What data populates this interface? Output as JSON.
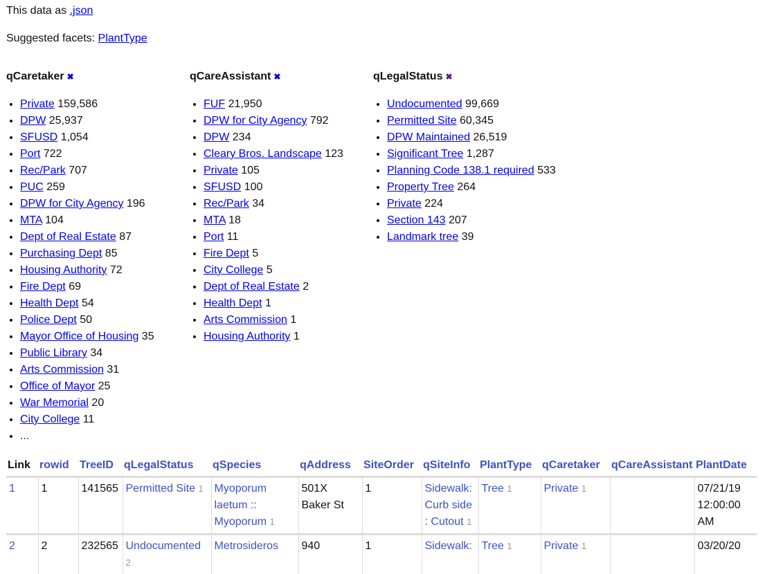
{
  "header": {
    "json_prefix": "This data as",
    "json_link": ".json",
    "suggested_label": "Suggested facets:",
    "suggested": [
      "PlantType"
    ]
  },
  "facets": [
    {
      "name": "qCaretaker",
      "remove_icon": "✖",
      "icon_color": "#0000ee",
      "items": [
        {
          "label": "Private",
          "count": "159,586"
        },
        {
          "label": "DPW",
          "count": "25,937"
        },
        {
          "label": "SFUSD",
          "count": "1,054"
        },
        {
          "label": "Port",
          "count": "722"
        },
        {
          "label": "Rec/Park",
          "count": "707"
        },
        {
          "label": "PUC",
          "count": "259"
        },
        {
          "label": "DPW for City Agency",
          "count": "196"
        },
        {
          "label": "MTA",
          "count": "104"
        },
        {
          "label": "Dept of Real Estate",
          "count": "87"
        },
        {
          "label": "Purchasing Dept",
          "count": "85"
        },
        {
          "label": "Housing Authority",
          "count": "72"
        },
        {
          "label": "Fire Dept",
          "count": "69"
        },
        {
          "label": "Health Dept",
          "count": "54"
        },
        {
          "label": "Police Dept",
          "count": "50"
        },
        {
          "label": "Mayor Office of Housing",
          "count": "35"
        },
        {
          "label": "Public Library",
          "count": "34"
        },
        {
          "label": "Arts Commission",
          "count": "31"
        },
        {
          "label": "Office of Mayor",
          "count": "25"
        },
        {
          "label": "War Memorial",
          "count": "20"
        },
        {
          "label": "City College",
          "count": "11"
        }
      ],
      "more": "..."
    },
    {
      "name": "qCareAssistant",
      "remove_icon": "✖",
      "icon_color": "#0000ee",
      "items": [
        {
          "label": "FUF",
          "count": "21,950"
        },
        {
          "label": "DPW for City Agency",
          "count": "792"
        },
        {
          "label": "DPW",
          "count": "234"
        },
        {
          "label": "Cleary Bros. Landscape",
          "count": "123"
        },
        {
          "label": "Private",
          "count": "105"
        },
        {
          "label": "SFUSD",
          "count": "100"
        },
        {
          "label": "Rec/Park",
          "count": "34"
        },
        {
          "label": "MTA",
          "count": "18"
        },
        {
          "label": "Port",
          "count": "11"
        },
        {
          "label": "Fire Dept",
          "count": "5"
        },
        {
          "label": "City College",
          "count": "5"
        },
        {
          "label": "Dept of Real Estate",
          "count": "2"
        },
        {
          "label": "Health Dept",
          "count": "1"
        },
        {
          "label": "Arts Commission",
          "count": "1"
        },
        {
          "label": "Housing Authority",
          "count": "1"
        }
      ]
    },
    {
      "name": "qLegalStatus",
      "remove_icon": "✖",
      "icon_color": "#551a8b",
      "items": [
        {
          "label": "Undocumented",
          "count": "99,669"
        },
        {
          "label": "Permitted Site",
          "count": "60,345"
        },
        {
          "label": "DPW Maintained",
          "count": "26,519"
        },
        {
          "label": "Significant Tree",
          "count": "1,287"
        },
        {
          "label": "Planning Code 138.1 required",
          "count": "533"
        },
        {
          "label": "Property Tree",
          "count": "264"
        },
        {
          "label": "Private",
          "count": "224"
        },
        {
          "label": "Section 143",
          "count": "207"
        },
        {
          "label": "Landmark tree",
          "count": "39"
        }
      ]
    }
  ],
  "table": {
    "columns": [
      "Link",
      "rowid",
      "TreeID",
      "qLegalStatus",
      "qSpecies",
      "qAddress",
      "SiteOrder",
      "qSiteInfo",
      "PlantType",
      "qCaretaker",
      "qCareAssistant",
      "PlantDate"
    ],
    "rows": [
      {
        "link": "1",
        "rowid": "1",
        "treeid": "141565",
        "legal": "Permitted Site",
        "legal_n": "1",
        "species": "Myoporum laetum :: Myoporum",
        "species_n": "1",
        "address": "501X Baker St",
        "siteorder": "1",
        "siteinfo": "Sidewalk: Curb side : Cutout",
        "siteinfo_n": "1",
        "planttype": "Tree",
        "planttype_n": "1",
        "caretaker": "Private",
        "caretaker_n": "1",
        "assistant": "",
        "plantdate": "07/21/19 12:00:00 AM"
      },
      {
        "link": "2",
        "rowid": "2",
        "treeid": "232565",
        "legal": "Undocumented",
        "legal_n": "2",
        "species": "Metrosideros",
        "species_n": "",
        "address": "940",
        "siteorder": "1",
        "siteinfo": "Sidewalk:",
        "siteinfo_n": "",
        "planttype": "Tree",
        "planttype_n": "1",
        "caretaker": "Private",
        "caretaker_n": "1",
        "assistant": "",
        "plantdate": "03/20/20"
      }
    ]
  }
}
